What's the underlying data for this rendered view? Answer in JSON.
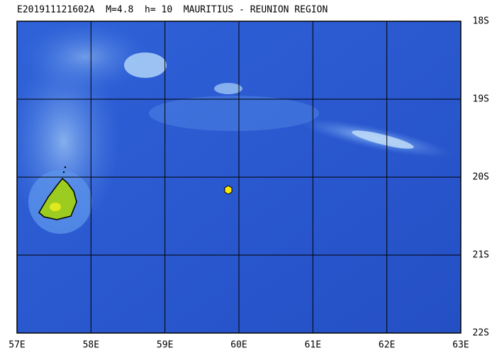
{
  "title": "E201911121602A  M=4.8  h= 10  MAURITIUS - REUNION REGION",
  "longitude_labels": [
    "57E",
    "58E",
    "59E",
    "60E",
    "61E",
    "62E",
    "63E"
  ],
  "latitude_labels": [
    "18S",
    "19S",
    "20S",
    "21S",
    "22S"
  ]
}
